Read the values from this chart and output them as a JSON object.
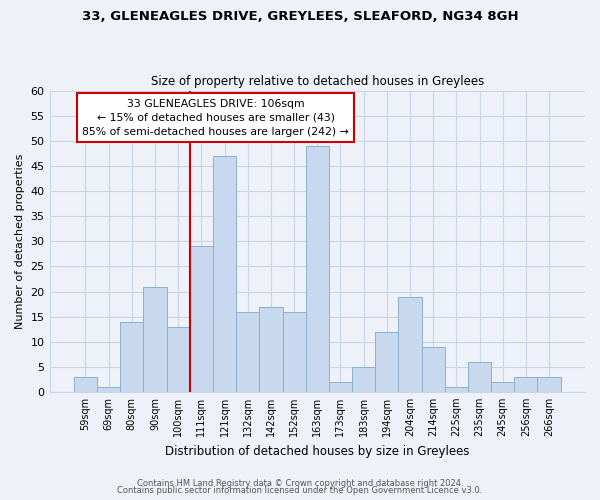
{
  "title": "33, GLENEAGLES DRIVE, GREYLEES, SLEAFORD, NG34 8GH",
  "subtitle": "Size of property relative to detached houses in Greylees",
  "xlabel": "Distribution of detached houses by size in Greylees",
  "ylabel": "Number of detached properties",
  "bin_labels": [
    "59sqm",
    "69sqm",
    "80sqm",
    "90sqm",
    "100sqm",
    "111sqm",
    "121sqm",
    "132sqm",
    "142sqm",
    "152sqm",
    "163sqm",
    "173sqm",
    "183sqm",
    "194sqm",
    "204sqm",
    "214sqm",
    "225sqm",
    "235sqm",
    "245sqm",
    "256sqm",
    "266sqm"
  ],
  "bar_heights": [
    3,
    1,
    14,
    21,
    13,
    29,
    47,
    16,
    17,
    16,
    49,
    2,
    5,
    12,
    19,
    9,
    1,
    6,
    2,
    3,
    3
  ],
  "bar_color": "#c8d8ee",
  "bar_edge_color": "#8ab0d0",
  "vline_between_idx": [
    4,
    5
  ],
  "vline_color": "#cc0000",
  "annotation_line1": "33 GLENEAGLES DRIVE: 106sqm",
  "annotation_line2": "← 15% of detached houses are smaller (43)",
  "annotation_line3": "85% of semi-detached houses are larger (242) →",
  "annotation_box_color": "#ffffff",
  "annotation_box_edge": "#cc0000",
  "ylim": [
    0,
    60
  ],
  "yticks": [
    0,
    5,
    10,
    15,
    20,
    25,
    30,
    35,
    40,
    45,
    50,
    55,
    60
  ],
  "footer_line1": "Contains HM Land Registry data © Crown copyright and database right 2024.",
  "footer_line2": "Contains public sector information licensed under the Open Government Licence v3.0.",
  "bg_color": "#eef2f8",
  "grid_color": "#c8d4e8"
}
